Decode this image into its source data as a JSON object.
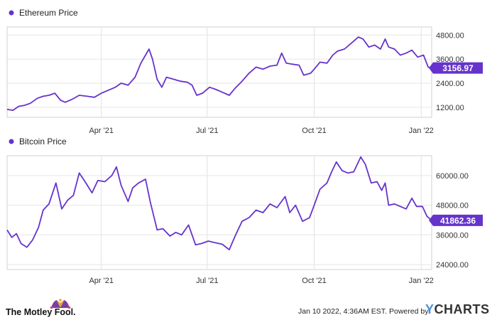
{
  "chart_data": [
    {
      "type": "line",
      "series_name": "Ethereum Price",
      "color": "#6633cc",
      "x_ticks": [
        "Apr '21",
        "Jul '21",
        "Oct '21",
        "Jan '22"
      ],
      "y_ticks": [
        "1200.00",
        "2400.00",
        "3600.00",
        "4800.00"
      ],
      "ylim": [
        700,
        5200
      ],
      "last_value_label": "3156.97",
      "x_range": [
        "2021-01-10",
        "2022-01-10"
      ],
      "points": [
        [
          "2021-01-10",
          1100
        ],
        [
          "2021-01-15",
          1050
        ],
        [
          "2021-01-20",
          1250
        ],
        [
          "2021-01-25",
          1300
        ],
        [
          "2021-01-30",
          1400
        ],
        [
          "2021-02-05",
          1650
        ],
        [
          "2021-02-10",
          1750
        ],
        [
          "2021-02-15",
          1800
        ],
        [
          "2021-02-20",
          1900
        ],
        [
          "2021-02-25",
          1550
        ],
        [
          "2021-03-01",
          1450
        ],
        [
          "2021-03-07",
          1600
        ],
        [
          "2021-03-13",
          1800
        ],
        [
          "2021-03-20",
          1750
        ],
        [
          "2021-03-26",
          1700
        ],
        [
          "2021-04-01",
          1900
        ],
        [
          "2021-04-07",
          2050
        ],
        [
          "2021-04-13",
          2200
        ],
        [
          "2021-04-18",
          2400
        ],
        [
          "2021-04-24",
          2300
        ],
        [
          "2021-04-30",
          2700
        ],
        [
          "2021-05-05",
          3400
        ],
        [
          "2021-05-09",
          3800
        ],
        [
          "2021-05-12",
          4100
        ],
        [
          "2021-05-15",
          3600
        ],
        [
          "2021-05-19",
          2600
        ],
        [
          "2021-05-23",
          2200
        ],
        [
          "2021-05-27",
          2700
        ],
        [
          "2021-06-02",
          2600
        ],
        [
          "2021-06-08",
          2500
        ],
        [
          "2021-06-14",
          2450
        ],
        [
          "2021-06-18",
          2300
        ],
        [
          "2021-06-22",
          1800
        ],
        [
          "2021-06-27",
          1900
        ],
        [
          "2021-07-03",
          2200
        ],
        [
          "2021-07-08",
          2100
        ],
        [
          "2021-07-14",
          1950
        ],
        [
          "2021-07-20",
          1800
        ],
        [
          "2021-07-25",
          2150
        ],
        [
          "2021-07-31",
          2500
        ],
        [
          "2021-08-06",
          2900
        ],
        [
          "2021-08-12",
          3200
        ],
        [
          "2021-08-18",
          3100
        ],
        [
          "2021-08-24",
          3250
        ],
        [
          "2021-08-30",
          3300
        ],
        [
          "2021-09-03",
          3900
        ],
        [
          "2021-09-07",
          3400
        ],
        [
          "2021-09-12",
          3350
        ],
        [
          "2021-09-18",
          3300
        ],
        [
          "2021-09-22",
          2800
        ],
        [
          "2021-09-28",
          2900
        ],
        [
          "2021-10-01",
          3100
        ],
        [
          "2021-10-06",
          3450
        ],
        [
          "2021-10-12",
          3400
        ],
        [
          "2021-10-17",
          3800
        ],
        [
          "2021-10-21",
          4000
        ],
        [
          "2021-10-27",
          4100
        ],
        [
          "2021-11-02",
          4400
        ],
        [
          "2021-11-08",
          4700
        ],
        [
          "2021-11-12",
          4600
        ],
        [
          "2021-11-17",
          4200
        ],
        [
          "2021-11-22",
          4300
        ],
        [
          "2021-11-27",
          4100
        ],
        [
          "2021-12-01",
          4600
        ],
        [
          "2021-12-04",
          4200
        ],
        [
          "2021-12-09",
          4100
        ],
        [
          "2021-12-14",
          3800
        ],
        [
          "2021-12-19",
          3900
        ],
        [
          "2021-12-24",
          4050
        ],
        [
          "2021-12-29",
          3700
        ],
        [
          "2022-01-03",
          3800
        ],
        [
          "2022-01-07",
          3200
        ],
        [
          "2022-01-10",
          3156.97
        ]
      ]
    },
    {
      "type": "line",
      "series_name": "Bitcoin Price",
      "color": "#6633cc",
      "x_ticks": [
        "Apr '21",
        "Jul '21",
        "Oct '21",
        "Jan '22"
      ],
      "y_ticks": [
        "24000.00",
        "36000.00",
        "48000.00",
        "60000.00"
      ],
      "ylim": [
        22000,
        68000
      ],
      "last_value_label": "41862.36",
      "x_range": [
        "2021-01-10",
        "2022-01-10"
      ],
      "points": [
        [
          "2021-01-10",
          38000
        ],
        [
          "2021-01-14",
          35000
        ],
        [
          "2021-01-18",
          36500
        ],
        [
          "2021-01-22",
          32500
        ],
        [
          "2021-01-27",
          31000
        ],
        [
          "2021-02-01",
          34000
        ],
        [
          "2021-02-06",
          39000
        ],
        [
          "2021-02-10",
          46000
        ],
        [
          "2021-02-15",
          48500
        ],
        [
          "2021-02-21",
          57000
        ],
        [
          "2021-02-26",
          46500
        ],
        [
          "2021-03-03",
          50000
        ],
        [
          "2021-03-08",
          52000
        ],
        [
          "2021-03-13",
          61000
        ],
        [
          "2021-03-18",
          57500
        ],
        [
          "2021-03-24",
          53000
        ],
        [
          "2021-03-29",
          58000
        ],
        [
          "2021-04-04",
          57500
        ],
        [
          "2021-04-10",
          60000
        ],
        [
          "2021-04-14",
          63500
        ],
        [
          "2021-04-18",
          56000
        ],
        [
          "2021-04-24",
          49500
        ],
        [
          "2021-04-28",
          55000
        ],
        [
          "2021-05-03",
          57000
        ],
        [
          "2021-05-09",
          58500
        ],
        [
          "2021-05-13",
          49500
        ],
        [
          "2021-05-19",
          38000
        ],
        [
          "2021-05-24",
          38500
        ],
        [
          "2021-05-30",
          35500
        ],
        [
          "2021-06-04",
          37000
        ],
        [
          "2021-06-09",
          36000
        ],
        [
          "2021-06-15",
          40000
        ],
        [
          "2021-06-21",
          32000
        ],
        [
          "2021-06-26",
          32500
        ],
        [
          "2021-07-02",
          33500
        ],
        [
          "2021-07-08",
          32800
        ],
        [
          "2021-07-14",
          32200
        ],
        [
          "2021-07-20",
          30000
        ],
        [
          "2021-07-25",
          35500
        ],
        [
          "2021-07-31",
          41500
        ],
        [
          "2021-08-06",
          43000
        ],
        [
          "2021-08-12",
          46000
        ],
        [
          "2021-08-18",
          45000
        ],
        [
          "2021-08-24",
          48500
        ],
        [
          "2021-08-30",
          47000
        ],
        [
          "2021-09-06",
          51500
        ],
        [
          "2021-09-10",
          45000
        ],
        [
          "2021-09-15",
          48000
        ],
        [
          "2021-09-21",
          41500
        ],
        [
          "2021-09-27",
          43000
        ],
        [
          "2021-10-01",
          48000
        ],
        [
          "2021-10-06",
          54500
        ],
        [
          "2021-10-12",
          57000
        ],
        [
          "2021-10-16",
          61500
        ],
        [
          "2021-10-20",
          65500
        ],
        [
          "2021-10-25",
          62000
        ],
        [
          "2021-10-30",
          61000
        ],
        [
          "2021-11-04",
          61500
        ],
        [
          "2021-11-10",
          67500
        ],
        [
          "2021-11-14",
          64500
        ],
        [
          "2021-11-19",
          57000
        ],
        [
          "2021-11-24",
          57500
        ],
        [
          "2021-11-28",
          54000
        ],
        [
          "2021-12-01",
          57000
        ],
        [
          "2021-12-04",
          48000
        ],
        [
          "2021-12-09",
          48500
        ],
        [
          "2021-12-14",
          47500
        ],
        [
          "2021-12-19",
          46500
        ],
        [
          "2021-12-24",
          50800
        ],
        [
          "2021-12-28",
          47500
        ],
        [
          "2022-01-02",
          47500
        ],
        [
          "2022-01-06",
          43500
        ],
        [
          "2022-01-10",
          41862.36
        ]
      ]
    }
  ],
  "footer": {
    "brand": "The Motley Fool.",
    "timestamp": "Jan 10 2022, 4:36AM EST.",
    "powered_by": "Powered by",
    "ycharts_y": "Y",
    "ycharts_rest": "CHARTS"
  }
}
